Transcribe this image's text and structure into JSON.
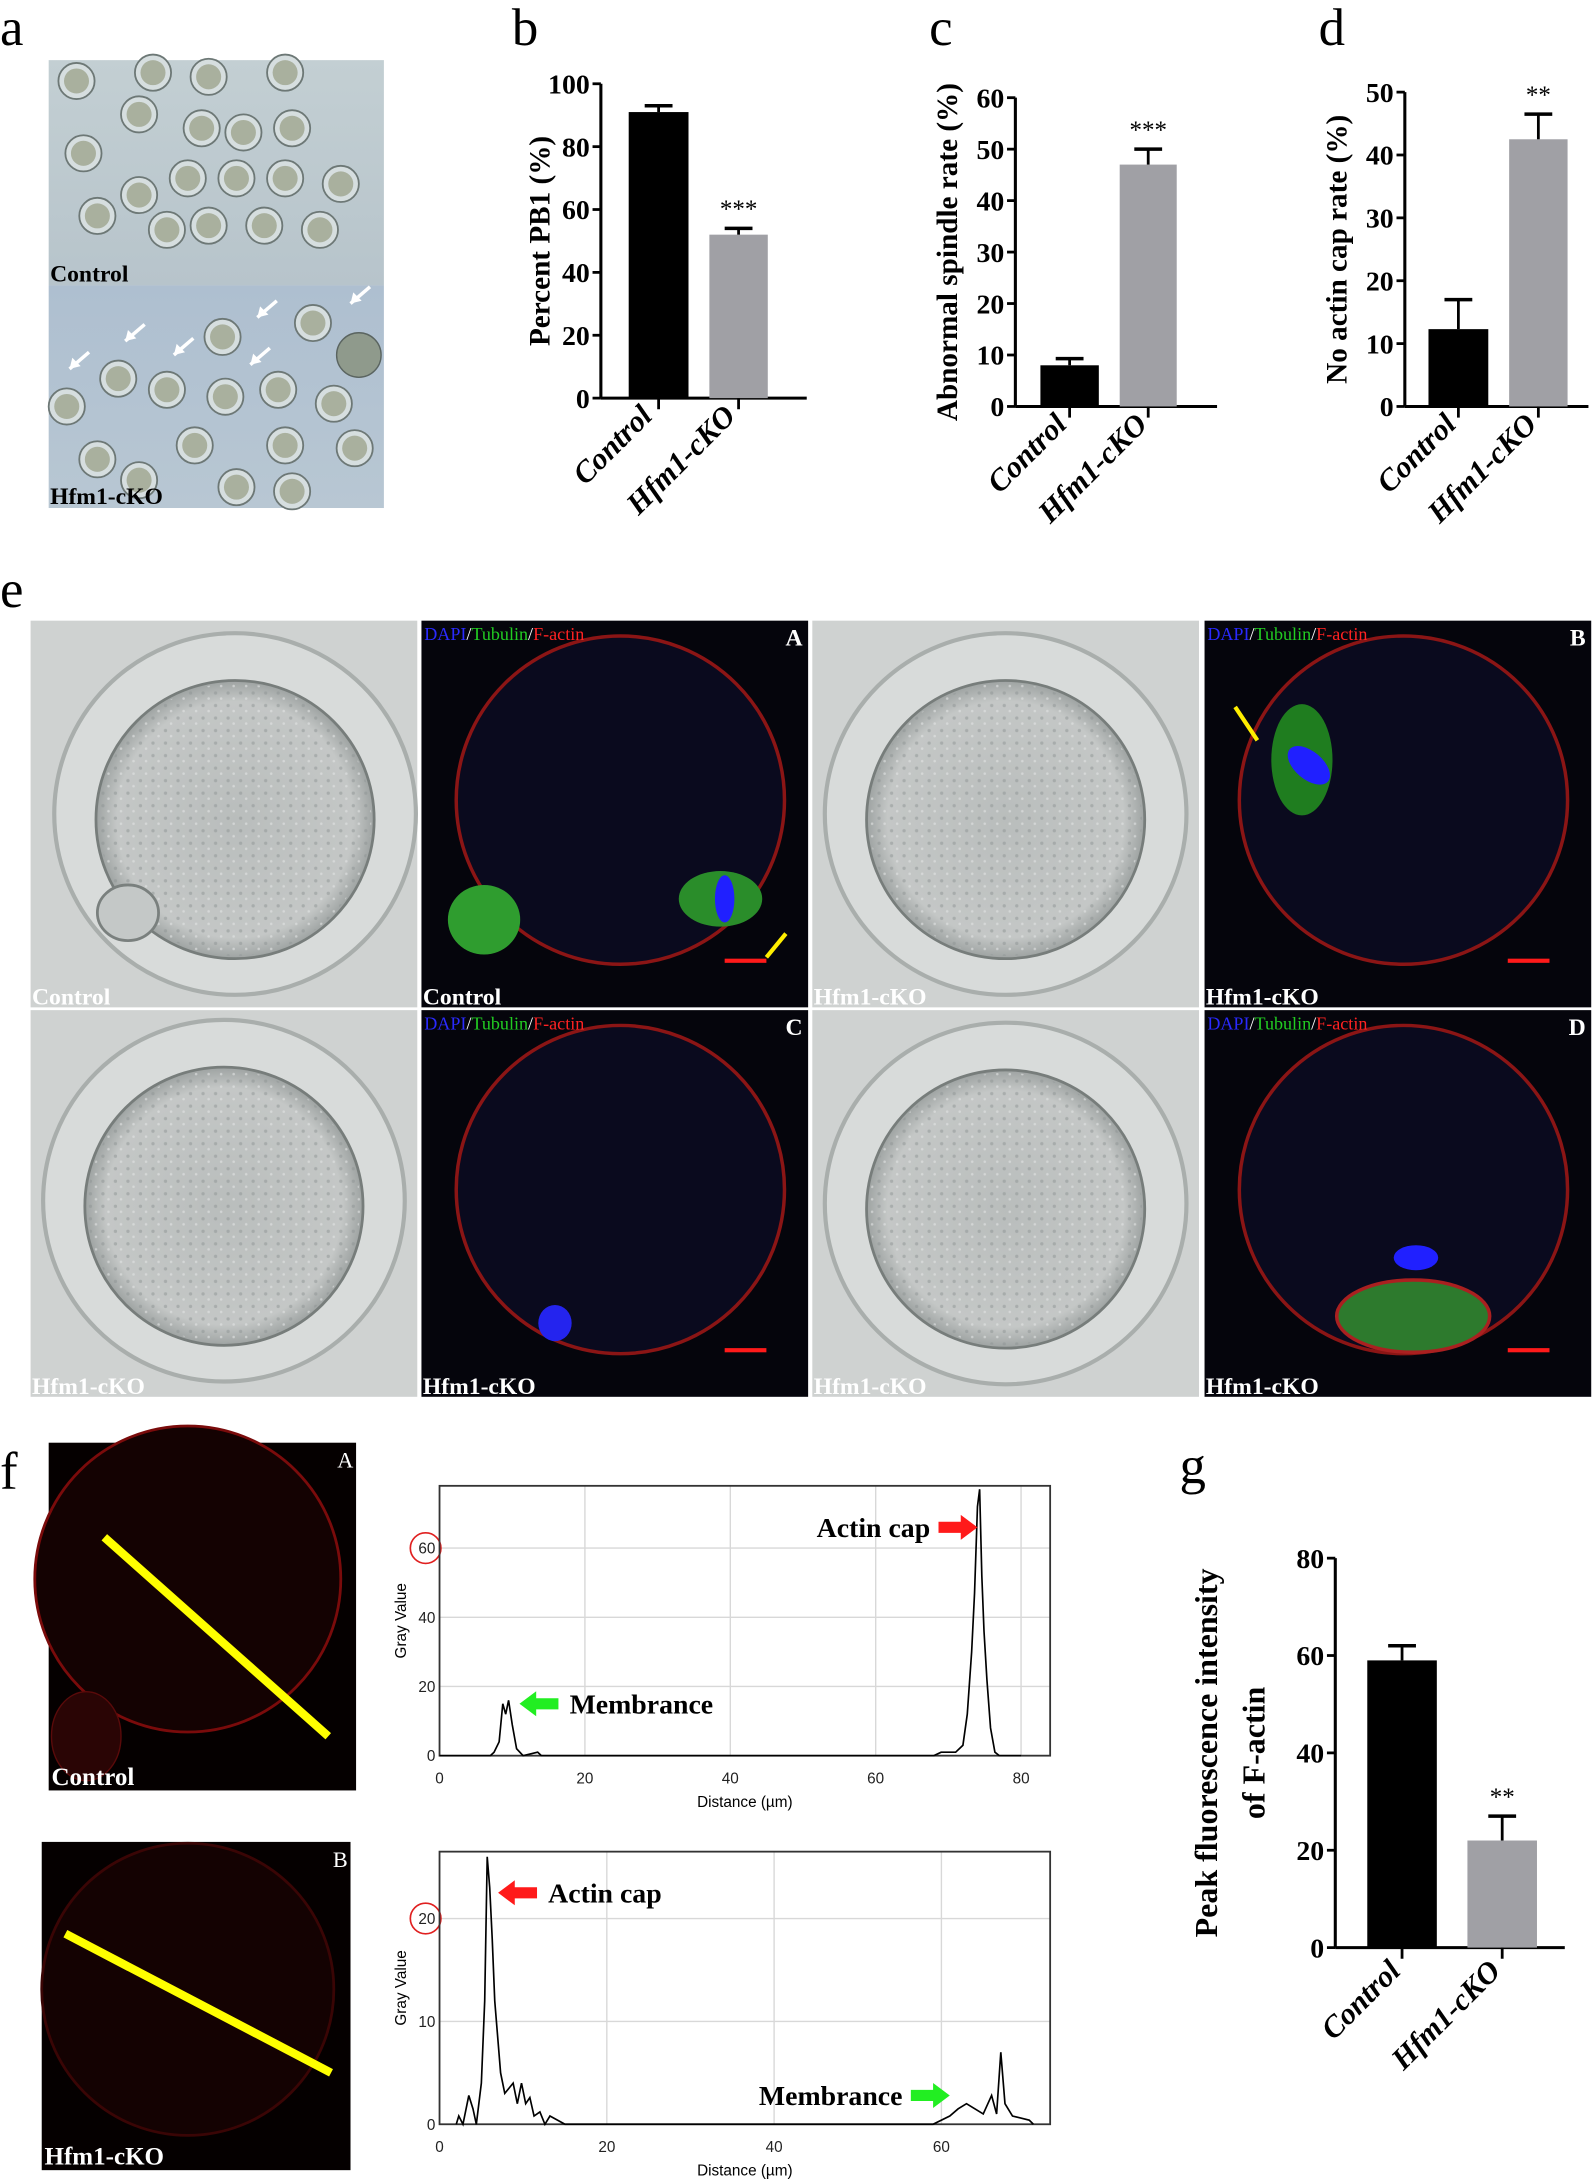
{
  "panel_letters": {
    "a": "a",
    "b": "b",
    "c": "c",
    "d": "d",
    "e": "e",
    "f": "f",
    "g": "g"
  },
  "panel_a": {
    "top_label": "Control",
    "bottom_label": "Hfm1-cKO"
  },
  "panel_e": {
    "stain": {
      "dapi": "DAPI",
      "tubulin": "Tubulin",
      "factin": "F-actin",
      "sep": "/"
    },
    "stain_colors": {
      "dapi": "#2a2aff",
      "tubulin": "#22cc22",
      "factin": "#ff2222"
    },
    "tiles": [
      {
        "label": "Control",
        "type": "brightfield"
      },
      {
        "label": "Control",
        "type": "fluorescence",
        "letter": "A"
      },
      {
        "label": "Hfm1-cKO",
        "type": "brightfield"
      },
      {
        "label": "Hfm1-cKO",
        "type": "fluorescence",
        "letter": "B"
      },
      {
        "label": "Hfm1-cKO",
        "type": "brightfield"
      },
      {
        "label": "Hfm1-cKO",
        "type": "fluorescence",
        "letter": "C"
      },
      {
        "label": "Hfm1-cKO",
        "type": "brightfield"
      },
      {
        "label": "Hfm1-cKO",
        "type": "fluorescence",
        "letter": "D"
      }
    ]
  },
  "panel_f": {
    "images": [
      {
        "label": "Control",
        "letter": "A"
      },
      {
        "label": "Hfm1-cKO",
        "letter": "B"
      }
    ],
    "line_color": "#ffff00"
  },
  "chart_data": [
    {
      "id": "b",
      "type": "bar",
      "categories": [
        "Control",
        "Hfm1-cKO"
      ],
      "values": [
        91,
        52
      ],
      "errors": [
        2,
        2
      ],
      "colors": [
        "#000000",
        "#a0a0a5"
      ],
      "ylabel": "Percent PB1 (%)",
      "ylim": [
        0,
        100
      ],
      "yticks": [
        0,
        20,
        40,
        60,
        80,
        100
      ],
      "significance": [
        "",
        "***"
      ]
    },
    {
      "id": "c",
      "type": "bar",
      "categories": [
        "Control",
        "Hfm1-cKO"
      ],
      "values": [
        8,
        47
      ],
      "errors": [
        1.3,
        3
      ],
      "colors": [
        "#000000",
        "#a0a0a5"
      ],
      "ylabel": "Abnormal spindle rate (%)",
      "ylim": [
        0,
        60
      ],
      "yticks": [
        0,
        10,
        20,
        30,
        40,
        50,
        60
      ],
      "significance": [
        "",
        "***"
      ]
    },
    {
      "id": "d",
      "type": "bar",
      "categories": [
        "Control",
        "Hfm1-cKO"
      ],
      "values": [
        12.3,
        42.5
      ],
      "errors": [
        4.7,
        4
      ],
      "colors": [
        "#000000",
        "#a0a0a5"
      ],
      "ylabel": "No actin cap rate (%)",
      "ylim": [
        0,
        50
      ],
      "yticks": [
        0,
        10,
        20,
        30,
        40,
        50
      ],
      "significance": [
        "",
        "**"
      ]
    },
    {
      "id": "f1",
      "type": "line",
      "xlabel": "Distance (µm)",
      "ylabel": "Gray Value",
      "xlim": [
        0,
        84
      ],
      "ylim": [
        0,
        78
      ],
      "xticks": [
        0,
        20,
        40,
        60,
        80
      ],
      "yticks": [
        0,
        20,
        40,
        60
      ],
      "circled_tick": "60",
      "grid": true,
      "annotations": [
        {
          "text": "Actin cap",
          "arrow": "red",
          "x": 74,
          "y": 66
        },
        {
          "text": "Membrance",
          "arrow": "green",
          "x": 11,
          "y": 15
        }
      ],
      "points": [
        [
          0,
          0
        ],
        [
          7,
          0
        ],
        [
          7.5,
          1
        ],
        [
          8.2,
          4
        ],
        [
          8.7,
          15
        ],
        [
          9.1,
          12
        ],
        [
          9.5,
          16
        ],
        [
          10,
          9
        ],
        [
          10.6,
          2
        ],
        [
          11.5,
          0
        ],
        [
          13.5,
          1
        ],
        [
          14,
          0
        ],
        [
          68,
          0
        ],
        [
          69,
          1
        ],
        [
          71,
          1
        ],
        [
          72,
          3
        ],
        [
          72.6,
          12
        ],
        [
          73.2,
          30
        ],
        [
          73.6,
          47
        ],
        [
          74,
          72
        ],
        [
          74.3,
          77
        ],
        [
          74.6,
          52
        ],
        [
          74.9,
          36
        ],
        [
          75.3,
          22
        ],
        [
          75.8,
          8
        ],
        [
          76.4,
          1
        ],
        [
          77,
          0
        ],
        [
          80,
          0
        ]
      ]
    },
    {
      "id": "f2",
      "type": "line",
      "xlabel": "Distance (µm)",
      "ylabel": "Gray Value",
      "xlim": [
        0,
        73
      ],
      "ylim": [
        0,
        26.5
      ],
      "xticks": [
        0,
        20,
        40,
        60
      ],
      "yticks": [
        0,
        10,
        20
      ],
      "circled_tick": "20",
      "grid": true,
      "annotations": [
        {
          "text": "Actin cap",
          "arrow": "red",
          "x": 7,
          "y": 22.5
        },
        {
          "text": "Membrance",
          "arrow": "green",
          "x": 61,
          "y": 2.8
        }
      ],
      "points": [
        [
          2,
          0
        ],
        [
          2.3,
          0.8
        ],
        [
          2.8,
          0
        ],
        [
          3.5,
          2.8
        ],
        [
          4,
          1.5
        ],
        [
          4.4,
          0
        ],
        [
          5,
          4
        ],
        [
          5.4,
          12
        ],
        [
          5.7,
          26
        ],
        [
          6,
          23
        ],
        [
          6.3,
          18
        ],
        [
          6.6,
          12
        ],
        [
          7,
          8
        ],
        [
          7.3,
          5
        ],
        [
          7.8,
          3
        ],
        [
          8.3,
          3.5
        ],
        [
          8.8,
          4
        ],
        [
          9.3,
          2
        ],
        [
          9.8,
          4
        ],
        [
          10.3,
          2
        ],
        [
          10.8,
          2.6
        ],
        [
          11.3,
          0.8
        ],
        [
          12,
          1.2
        ],
        [
          12.6,
          0
        ],
        [
          13.2,
          0.8
        ],
        [
          15,
          0
        ],
        [
          59,
          0
        ],
        [
          61,
          0.8
        ],
        [
          62,
          1.5
        ],
        [
          63,
          2
        ],
        [
          64,
          1.5
        ],
        [
          65,
          1
        ],
        [
          66,
          2.8
        ],
        [
          66.6,
          1
        ],
        [
          67.1,
          7
        ],
        [
          67.6,
          2
        ],
        [
          68.5,
          0.8
        ],
        [
          69.5,
          0.6
        ],
        [
          70.5,
          0.4
        ],
        [
          71,
          0
        ]
      ]
    },
    {
      "id": "g",
      "type": "bar",
      "categories": [
        "Control",
        "Hfm1-cKO"
      ],
      "values": [
        59,
        22
      ],
      "errors": [
        3,
        5
      ],
      "colors": [
        "#000000",
        "#a0a0a5"
      ],
      "ylabel": "Peak fluorescence intensity of F-actin",
      "ylabel_lines": [
        "Peak fluorescence intensity",
        "of F-actin"
      ],
      "ylim": [
        0,
        80
      ],
      "yticks": [
        0,
        20,
        40,
        60,
        80
      ],
      "significance": [
        "",
        "**"
      ]
    }
  ]
}
